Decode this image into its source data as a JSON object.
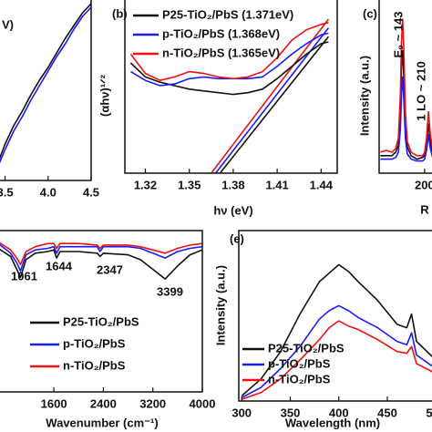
{
  "chart_data": [
    {
      "type": "line",
      "annotations": [
        "V)"
      ],
      "x": [
        3.42,
        3.5,
        3.6,
        3.7,
        3.8,
        3.9,
        4.0,
        4.1,
        4.2,
        4.3,
        4.4,
        4.5
      ],
      "series": [
        {
          "color": "#111111",
          "values": [
            0.1,
            0.2,
            0.3,
            0.38,
            0.47,
            0.55,
            0.62,
            0.7,
            0.78,
            0.85,
            0.92,
            0.97
          ]
        },
        {
          "color": "#1a1aff",
          "values": [
            0.08,
            0.17,
            0.27,
            0.35,
            0.44,
            0.52,
            0.6,
            0.68,
            0.75,
            0.83,
            0.9,
            0.95
          ]
        }
      ],
      "xlim": [
        3.42,
        4.5
      ],
      "ylim": [
        0,
        1
      ],
      "xticks": [
        3.5,
        {
          "value": 4.0,
          "label": "4.0"
        },
        4.5
      ]
    },
    {
      "type": "line",
      "panel_label": "(b)",
      "xlabel": "hν (eV)",
      "ylabel": "(αhν)¹ᐟ²",
      "x": [
        1.31,
        1.32,
        1.33,
        1.34,
        1.35,
        1.36,
        1.37,
        1.38,
        1.39,
        1.4,
        1.41,
        1.42,
        1.43,
        1.44,
        1.445
      ],
      "series": [
        {
          "name": "P25-TiO₂/PbS (1.371eV)",
          "color": "#111111",
          "values": [
            0.63,
            0.55,
            0.52,
            0.5,
            0.48,
            0.47,
            0.46,
            0.45,
            0.46,
            0.48,
            0.54,
            0.61,
            0.68,
            0.74,
            0.75
          ]
        },
        {
          "name": "p-TiO₂/PbS (1.368eV)",
          "color": "#1a1aff",
          "values": [
            0.58,
            0.53,
            0.5,
            0.51,
            0.54,
            0.55,
            0.54,
            0.54,
            0.54,
            0.55,
            0.61,
            0.68,
            0.74,
            0.79,
            0.8
          ]
        },
        {
          "name": "n-TiO₂/PbS (1.365eV)",
          "color": "#ee1111",
          "values": [
            0.68,
            0.57,
            0.53,
            0.55,
            0.58,
            0.57,
            0.55,
            0.54,
            0.55,
            0.58,
            0.66,
            0.76,
            0.82,
            0.85,
            0.86
          ]
        }
      ],
      "tangents": [
        {
          "color": "#111111",
          "x": [
            1.371,
            1.445
          ],
          "values": [
            0,
            0.78
          ]
        },
        {
          "color": "#1a1aff",
          "x": [
            1.368,
            1.445
          ],
          "values": [
            0,
            0.83
          ]
        },
        {
          "color": "#ee1111",
          "x": [
            1.365,
            1.445
          ],
          "values": [
            0,
            0.88
          ]
        }
      ],
      "xlim": [
        1.306,
        1.451
      ],
      "ylim": [
        0,
        1
      ],
      "xticks": [
        1.32,
        1.35,
        1.38,
        1.41,
        1.44
      ]
    },
    {
      "type": "line",
      "panel_label": "(c)",
      "xlabel": "R",
      "ylabel": "Intensity (a.u.)",
      "annotations": [
        "E₉ ~ 143",
        "1 LO ~ 210"
      ],
      "x": [
        85,
        100,
        115,
        125,
        132,
        137,
        140,
        143,
        146,
        150,
        155,
        165,
        180,
        195,
        200,
        205,
        210,
        215,
        222,
        235,
        250,
        257
      ],
      "series": [
        {
          "color": "#111111",
          "values": [
            0.1,
            0.1,
            0.1,
            0.12,
            0.16,
            0.35,
            0.6,
            0.7,
            0.55,
            0.28,
            0.15,
            0.1,
            0.08,
            0.09,
            0.1,
            0.17,
            0.28,
            0.18,
            0.1,
            0.09,
            0.09,
            0.09
          ]
        },
        {
          "color": "#1a1aff",
          "values": [
            0.08,
            0.08,
            0.08,
            0.09,
            0.12,
            0.25,
            0.45,
            0.55,
            0.42,
            0.2,
            0.11,
            0.08,
            0.07,
            0.07,
            0.08,
            0.13,
            0.22,
            0.14,
            0.08,
            0.07,
            0.07,
            0.07
          ]
        },
        {
          "color": "#ee1111",
          "values": [
            0.12,
            0.13,
            0.12,
            0.14,
            0.2,
            0.45,
            0.75,
            0.88,
            0.7,
            0.35,
            0.18,
            0.12,
            0.1,
            0.1,
            0.12,
            0.2,
            0.35,
            0.22,
            0.12,
            0.1,
            0.11,
            0.1
          ]
        }
      ],
      "xlim": [
        82,
        257
      ],
      "ylim": [
        0,
        1
      ],
      "xticks": [
        200
      ]
    },
    {
      "type": "line",
      "xlabel": "Wavenumber (cm⁻¹)",
      "annotations": [
        "1061",
        "1644",
        "2347",
        "3399"
      ],
      "x": [
        700,
        900,
        1000,
        1061,
        1150,
        1300,
        1500,
        1600,
        1644,
        1700,
        2000,
        2300,
        2347,
        2400,
        2800,
        3000,
        3200,
        3399,
        3600,
        3800,
        4000
      ],
      "series": [
        {
          "name": "P25-TiO₂/PbS",
          "color": "#111111",
          "values": [
            0.89,
            0.84,
            0.76,
            0.71,
            0.82,
            0.86,
            0.87,
            0.88,
            0.83,
            0.87,
            0.87,
            0.86,
            0.84,
            0.86,
            0.85,
            0.82,
            0.76,
            0.7,
            0.78,
            0.85,
            0.88
          ]
        },
        {
          "name": "p-TiO₂/PbS",
          "color": "#1a1aff",
          "values": [
            0.92,
            0.86,
            0.8,
            0.75,
            0.85,
            0.88,
            0.89,
            0.9,
            0.86,
            0.9,
            0.9,
            0.9,
            0.87,
            0.9,
            0.9,
            0.89,
            0.86,
            0.83,
            0.87,
            0.89,
            0.9
          ]
        },
        {
          "name": "n-TiO₂/PbS",
          "color": "#ee1111",
          "values": [
            0.93,
            0.88,
            0.83,
            0.79,
            0.87,
            0.9,
            0.92,
            0.92,
            0.89,
            0.92,
            0.92,
            0.91,
            0.89,
            0.91,
            0.91,
            0.9,
            0.88,
            0.86,
            0.89,
            0.91,
            0.92
          ]
        }
      ],
      "xlim": [
        700,
        4000
      ],
      "ylim": [
        0,
        1
      ],
      "xticks": [
        1600,
        2400,
        3200,
        4000
      ]
    },
    {
      "type": "line",
      "panel_label": "(e)",
      "xlabel": "Wavelength (nm)",
      "ylabel": "Intensity (a.u.)",
      "x": [
        300,
        320,
        340,
        360,
        380,
        390,
        400,
        410,
        420,
        440,
        460,
        470,
        475,
        480,
        500,
        510
      ],
      "series": [
        {
          "name": "P25-TiO₂/PbS",
          "color": "#111111",
          "values": [
            0.03,
            0.13,
            0.29,
            0.51,
            0.7,
            0.75,
            0.8,
            0.76,
            0.7,
            0.59,
            0.45,
            0.43,
            0.51,
            0.35,
            0.24,
            0.21
          ]
        },
        {
          "name": "p-TiO₂/PbS",
          "color": "#1a1aff",
          "values": [
            0.02,
            0.08,
            0.19,
            0.32,
            0.48,
            0.53,
            0.56,
            0.53,
            0.49,
            0.43,
            0.35,
            0.33,
            0.4,
            0.27,
            0.19,
            0.17
          ]
        },
        {
          "name": "n-TiO₂/PbS",
          "color": "#ee1111",
          "values": [
            0.01,
            0.05,
            0.13,
            0.24,
            0.36,
            0.43,
            0.47,
            0.44,
            0.42,
            0.36,
            0.29,
            0.28,
            0.32,
            0.22,
            0.16,
            0.15
          ]
        }
      ],
      "xlim": [
        297,
        511
      ],
      "ylim": [
        0,
        1
      ],
      "xticks": [
        300,
        350,
        400,
        450,
        500
      ]
    }
  ]
}
